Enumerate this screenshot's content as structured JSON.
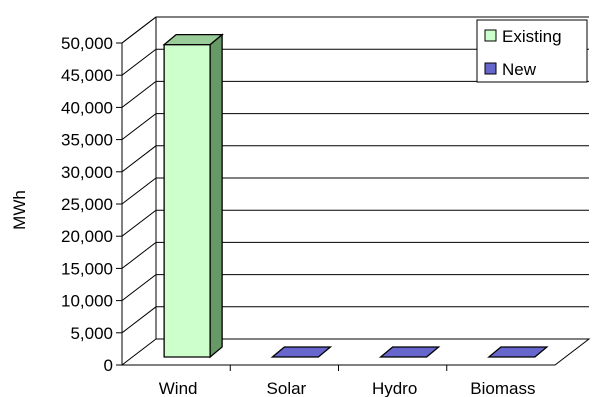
{
  "chart_data": {
    "type": "bar",
    "style": "3d-column",
    "categories": [
      "Wind",
      "Solar",
      "Hydro",
      "Biomass"
    ],
    "series": [
      {
        "name": "Existing",
        "values": [
          48500,
          0,
          0,
          0
        ],
        "color": "#ccffcc",
        "side_color": "#669966",
        "top_color": "#99cc99"
      },
      {
        "name": "New",
        "values": [
          0,
          0,
          0,
          0
        ],
        "color": "#6666cc",
        "side_color": "#333399",
        "top_color": "#8080e0"
      }
    ],
    "title": "",
    "xlabel": "",
    "ylabel": "MWh",
    "ylim": [
      0,
      50000
    ],
    "yticks": [
      0,
      5000,
      10000,
      15000,
      20000,
      25000,
      30000,
      35000,
      40000,
      45000,
      50000
    ],
    "ytick_labels": [
      "0",
      "5,000",
      "10,000",
      "15,000",
      "20,000",
      "25,000",
      "30,000",
      "35,000",
      "40,000",
      "45,000",
      "50,000"
    ],
    "grid": true,
    "legend": "top-right"
  }
}
